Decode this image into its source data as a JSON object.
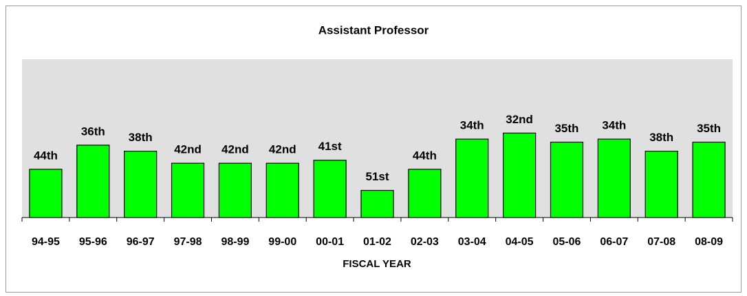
{
  "chart_data": {
    "type": "bar",
    "title": "Assistant Professor",
    "x_label": "FISCAL YEAR",
    "categories": [
      "94-95",
      "95-96",
      "96-97",
      "97-98",
      "98-99",
      "99-00",
      "00-01",
      "01-02",
      "02-03",
      "03-04",
      "04-05",
      "05-06",
      "06-07",
      "07-08",
      "08-09"
    ],
    "values": [
      44,
      36,
      38,
      42,
      42,
      42,
      41,
      51,
      44,
      34,
      32,
      35,
      34,
      38,
      35
    ],
    "value_labels": [
      "44th",
      "36th",
      "38th",
      "42nd",
      "42nd",
      "42nd",
      "41st",
      "51st",
      "44th",
      "34th",
      "32nd",
      "35th",
      "34th",
      "38th",
      "35th"
    ],
    "color": "#00ff00",
    "ylim": [
      60,
      7.5
    ]
  }
}
